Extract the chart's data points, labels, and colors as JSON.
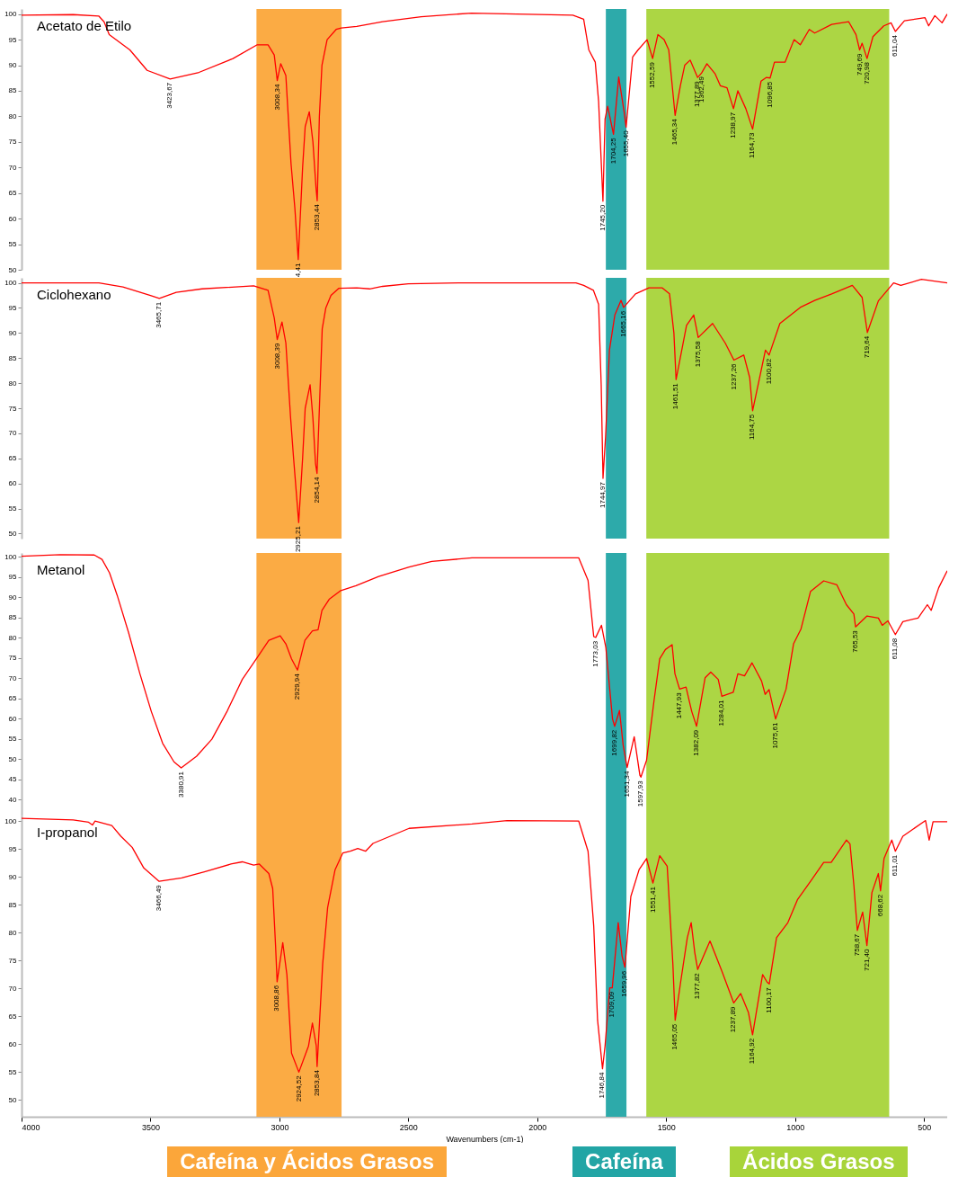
{
  "chart_data": [
    {
      "type": "line",
      "xlim": [
        4000,
        410
      ],
      "ylim": [
        50,
        101
      ],
      "yticks": [
        50,
        55,
        60,
        65,
        70,
        75,
        80,
        85,
        90,
        95,
        100
      ],
      "tick_labels": "y",
      "series": [
        {
          "name": "Acetato de Etilo",
          "color": "#ff0000",
          "x": [
            4000,
            3800,
            3700,
            3680,
            3660,
            3580,
            3513,
            3423.67,
            3312,
            3180,
            3086,
            3044,
            3020,
            3008.34,
            2995,
            2975,
            2955,
            2940,
            2927,
            2910,
            2900,
            2884,
            2870,
            2858,
            2853.44,
            2845,
            2835,
            2815,
            2780,
            2760,
            2700,
            2600,
            2450,
            2255,
            1862,
            1820,
            1800,
            1775,
            1762,
            1745.2,
            1737,
            1727,
            1704.25,
            1684,
            1663,
            1655.4,
            1630,
            1609,
            1574,
            1552.59,
            1532,
            1508,
            1490,
            1465.34,
            1445,
            1428,
            1407,
            1377.89,
            1362.49,
            1342,
            1310,
            1290,
            1264,
            1238.97,
            1222,
            1191,
            1164.73,
            1132,
            1112,
            1096.85,
            1080,
            1039,
            1004,
            980,
            945,
            924,
            858,
            792,
            764,
            749.69,
            740,
            720.98,
            698,
            656,
            628,
            611.04,
            576,
            496,
            482,
            458,
            430,
            410
          ],
          "values": [
            99.8,
            99.9,
            99.6,
            98.5,
            96,
            93,
            89,
            87.3,
            88.6,
            91.3,
            94,
            94,
            92,
            87,
            90.3,
            88,
            70.8,
            62,
            52,
            70,
            78,
            80.9,
            75,
            66,
            63.5,
            80,
            90,
            95,
            97,
            97.3,
            97.6,
            98.5,
            99.5,
            100.2,
            99.8,
            99,
            93,
            90.6,
            82.9,
            63.4,
            79.5,
            82,
            76.5,
            87.7,
            80.9,
            77.9,
            91.6,
            93,
            95,
            91.3,
            96,
            95,
            93,
            80.2,
            86,
            90,
            91,
            87.6,
            88.5,
            90.3,
            88.3,
            86,
            85.6,
            81.5,
            85,
            81.5,
            77.5,
            86.9,
            87.6,
            87.5,
            90.6,
            90.6,
            95,
            94,
            97,
            96.3,
            98,
            98.5,
            96,
            93,
            94.3,
            91.3,
            95.6,
            97.7,
            98.3,
            96.6,
            98.7,
            99.3,
            97.7,
            99.7,
            98.3,
            100
          ]
        }
      ],
      "annotations": [
        {
          "text": "3423,67",
          "x": 3423.67,
          "y": 87.3
        },
        {
          "text": "3008,34",
          "x": 3008.34,
          "y": 87
        },
        {
          "text": "4,41",
          "x": 2927,
          "y": 52
        },
        {
          "text": "2853,44",
          "x": 2853.44,
          "y": 63.5
        },
        {
          "text": "1745,20",
          "x": 1745.2,
          "y": 63.4
        },
        {
          "text": "1704,25",
          "x": 1704.25,
          "y": 76.5
        },
        {
          "text": "1655,40",
          "x": 1655.4,
          "y": 77.9
        },
        {
          "text": "1552,59",
          "x": 1552.59,
          "y": 91.3
        },
        {
          "text": "1465,34",
          "x": 1465.34,
          "y": 80.2
        },
        {
          "text": "1377,89",
          "x": 1377.89,
          "y": 87.6
        },
        {
          "text": "1362,49",
          "x": 1362.49,
          "y": 88.5
        },
        {
          "text": "1238,97",
          "x": 1238.97,
          "y": 81.5
        },
        {
          "text": "1164,73",
          "x": 1164.73,
          "y": 77.5
        },
        {
          "text": "1096,85",
          "x": 1096.85,
          "y": 87.5
        },
        {
          "text": "749,69",
          "x": 749.69,
          "y": 93
        },
        {
          "text": "720,98",
          "x": 720.98,
          "y": 91.3
        },
        {
          "text": "611,04",
          "x": 611.04,
          "y": 96.6
        }
      ],
      "bands": [
        {
          "axis": "x",
          "from": 3089,
          "to": 2759,
          "color": "#fba63a"
        },
        {
          "axis": "x",
          "from": 1734,
          "to": 1654,
          "color": "#22a5a5"
        },
        {
          "axis": "x",
          "from": 1577,
          "to": 635,
          "color": "#a8d43a"
        }
      ]
    },
    {
      "type": "line",
      "xlim": [
        4000,
        410
      ],
      "ylim": [
        49,
        101
      ],
      "yticks": [
        50,
        55,
        60,
        65,
        70,
        75,
        80,
        85,
        90,
        95,
        100
      ],
      "tick_labels": "y",
      "series": [
        {
          "name": "Ciclohexano",
          "color": "#ff0000",
          "x": [
            4000,
            3700,
            3607,
            3500,
            3465.71,
            3400,
            3300,
            3100,
            3044,
            3020,
            3008.39,
            2990,
            2975,
            2957,
            2945,
            2925.21,
            2910,
            2900,
            2881,
            2870,
            2860,
            2854.14,
            2845,
            2834,
            2820,
            2800,
            2770,
            2700,
            2650,
            2600,
            2500,
            2300,
            1850,
            1820,
            1782,
            1762,
            1752,
            1744.97,
            1735,
            1720,
            1699,
            1675,
            1665.16,
            1619,
            1567,
            1515,
            1487,
            1470,
            1461.51,
            1421,
            1393,
            1375.58,
            1320,
            1271,
            1237.26,
            1199,
            1176,
            1164.75,
            1115,
            1100.82,
            1059,
            980,
            924,
            858,
            778,
            740,
            719.64,
            677,
            618,
            590,
            510,
            410
          ],
          "values": [
            100,
            100,
            99.2,
            97.5,
            96.9,
            98.1,
            98.8,
            99.4,
            98.5,
            93,
            88.7,
            92.2,
            88,
            73.4,
            65,
            52.2,
            65,
            75,
            79.7,
            73,
            64,
            62,
            75,
            90.8,
            95,
            97.5,
            98.9,
            99,
            98.8,
            99.3,
            99.8,
            100,
            100,
            99.5,
            98.5,
            95.7,
            79.7,
            61,
            69.3,
            86.6,
            93.6,
            96.5,
            95.1,
            97.8,
            99,
            99,
            97.8,
            90,
            80.7,
            91.5,
            93.6,
            89.1,
            91.9,
            88,
            84.6,
            85.6,
            81.1,
            74.5,
            86.6,
            85.6,
            91.9,
            95.1,
            96.5,
            97.8,
            99.5,
            97.1,
            90.1,
            96.4,
            100,
            99.5,
            100.7,
            100
          ]
        }
      ],
      "annotations": [
        {
          "text": "3465,71",
          "x": 3465.71,
          "y": 96.9
        },
        {
          "text": "3008,39",
          "x": 3008.39,
          "y": 88.7
        },
        {
          "text": "2925,21",
          "x": 2925.21,
          "y": 52.2
        },
        {
          "text": "2854,14",
          "x": 2854.14,
          "y": 62
        },
        {
          "text": "1744,97",
          "x": 1744.97,
          "y": 61
        },
        {
          "text": "1665,16",
          "x": 1665.16,
          "y": 95.1
        },
        {
          "text": "1461,51",
          "x": 1461.51,
          "y": 80.7
        },
        {
          "text": "1375,58",
          "x": 1375.58,
          "y": 89.1
        },
        {
          "text": "1237,26",
          "x": 1237.26,
          "y": 84.6
        },
        {
          "text": "1164,75",
          "x": 1164.75,
          "y": 74.5
        },
        {
          "text": "1100,82",
          "x": 1100.82,
          "y": 85.6
        },
        {
          "text": "719,64",
          "x": 719.64,
          "y": 90.1
        }
      ],
      "bands": [
        {
          "axis": "x",
          "from": 3089,
          "to": 2759,
          "color": "#fba63a"
        },
        {
          "axis": "x",
          "from": 1734,
          "to": 1654,
          "color": "#22a5a5"
        },
        {
          "axis": "x",
          "from": 1577,
          "to": 635,
          "color": "#a8d43a"
        }
      ]
    },
    {
      "type": "line",
      "xlim": [
        4000,
        410
      ],
      "ylim": [
        36,
        101
      ],
      "yticks": [
        40,
        45,
        50,
        55,
        60,
        65,
        70,
        75,
        80,
        85,
        90,
        95,
        100
      ],
      "tick_labels": "y",
      "series": [
        {
          "name": "Metanol",
          "color": "#ff0000",
          "x": [
            4000,
            3850,
            3718,
            3688,
            3659,
            3629,
            3585,
            3541,
            3497,
            3453,
            3409,
            3380.91,
            3321,
            3262,
            3203,
            3144,
            3085,
            3041,
            2997,
            2975,
            2953,
            2929.94,
            2901,
            2872,
            2850,
            2835,
            2806,
            2762,
            2703,
            2615,
            2497,
            2409,
            2253,
            1839,
            1803,
            1781,
            1773.03,
            1751,
            1734,
            1708,
            1699.82,
            1681,
            1667,
            1651.34,
            1624,
            1602,
            1597.93,
            1576,
            1547,
            1525,
            1503,
            1477,
            1466,
            1447.93,
            1423,
            1401,
            1382.09,
            1349,
            1327,
            1298,
            1284.01,
            1240,
            1222,
            1196,
            1167,
            1130,
            1116,
            1101,
            1075.61,
            1035,
            1006,
            977,
            940,
            889,
            838,
            801,
            772,
            765.53,
            721,
            677,
            662,
            640,
            611.08,
            582,
            523,
            487,
            472,
            443,
            410
          ],
          "values": [
            100.2,
            100.6,
            100.5,
            99.4,
            96.1,
            90.5,
            81.3,
            71.1,
            61.8,
            53.9,
            49.3,
            47.8,
            50.7,
            54.9,
            61.8,
            69.7,
            75.2,
            79.4,
            80.5,
            78.5,
            74.8,
            72,
            79.4,
            81.7,
            82,
            86.8,
            89.6,
            91.7,
            92.9,
            95.2,
            97.5,
            98.9,
            99.8,
            99.8,
            94.2,
            80.3,
            80.1,
            83.1,
            77.6,
            59.9,
            58.1,
            62,
            53.5,
            47.9,
            55.5,
            46,
            45.5,
            49.7,
            64.5,
            74.8,
            77.1,
            78.3,
            71.1,
            67.3,
            67.8,
            61.8,
            58.1,
            70.1,
            71.5,
            69.7,
            65.5,
            66.5,
            71.1,
            70.6,
            73.8,
            69.3,
            66,
            67.2,
            59.9,
            67.3,
            78.5,
            82.2,
            91.5,
            94.1,
            93.1,
            88.2,
            85.9,
            82.7,
            85.4,
            84.9,
            83.1,
            84.2,
            80.8,
            84,
            84.9,
            88.2,
            86.8,
            92.4,
            96.6
          ]
        }
      ],
      "annotations": [
        {
          "text": "3380,91",
          "x": 3380.91,
          "y": 47.8
        },
        {
          "text": "2929,94",
          "x": 2929.94,
          "y": 72
        },
        {
          "text": "1773,03",
          "x": 1773.03,
          "y": 80.1
        },
        {
          "text": "1699,82",
          "x": 1699.82,
          "y": 58.1
        },
        {
          "text": "1651,34",
          "x": 1651.34,
          "y": 47.9
        },
        {
          "text": "1597,93",
          "x": 1597.93,
          "y": 45.5
        },
        {
          "text": "1447,93",
          "x": 1447.93,
          "y": 67.3
        },
        {
          "text": "1382,09",
          "x": 1382.09,
          "y": 58.1
        },
        {
          "text": "1284,01",
          "x": 1284.01,
          "y": 65.5
        },
        {
          "text": "1075,61",
          "x": 1075.61,
          "y": 59.9
        },
        {
          "text": "765,53",
          "x": 765.53,
          "y": 82.7
        },
        {
          "text": "611,08",
          "x": 611.08,
          "y": 80.8
        }
      ],
      "bands": [
        {
          "axis": "x",
          "from": 3089,
          "to": 2759,
          "color": "#fba63a"
        },
        {
          "axis": "x",
          "from": 1734,
          "to": 1654,
          "color": "#22a5a5"
        },
        {
          "axis": "x",
          "from": 1577,
          "to": 635,
          "color": "#a8d43a"
        }
      ]
    },
    {
      "type": "line",
      "xlim": [
        4000,
        410
      ],
      "ylim": [
        47,
        101
      ],
      "yticks": [
        50,
        55,
        60,
        65,
        70,
        75,
        80,
        85,
        90,
        95,
        100
      ],
      "xticks": [
        4000,
        3500,
        3000,
        2500,
        2000,
        1500,
        1000,
        500
      ],
      "xlabel": "Wavenumbers (cm-1)",
      "series": [
        {
          "name": "I-propanol",
          "color": "#ff0000",
          "x": [
            4000,
            3800,
            3740,
            3725,
            3715,
            3650,
            3615,
            3571,
            3526,
            3466.49,
            3379,
            3291,
            3188,
            3144,
            3100,
            3078,
            3041,
            3026,
            3015,
            3008.86,
            2987,
            2971,
            2953,
            2924.52,
            2887,
            2872,
            2857,
            2853.84,
            2832,
            2813,
            2784,
            2754,
            2725,
            2696,
            2666,
            2637,
            2497,
            2253,
            2117,
            1839,
            1803,
            1781,
            1766,
            1746.84,
            1737,
            1719,
            1709.09,
            1686,
            1671,
            1659.96,
            1637,
            1605,
            1576,
            1551.41,
            1525,
            1496,
            1474,
            1465.05,
            1444,
            1418,
            1403,
            1389,
            1377.82,
            1330,
            1284,
            1237.89,
            1211,
            1181,
            1164.92,
            1126,
            1108,
            1100.17,
            1072,
            1028,
            991,
            940,
            889,
            860,
            801,
            787,
            772,
            758.67,
            738,
            721.4,
            702,
            677,
            668.62,
            655,
            625,
            611.01,
            582,
            494,
            480,
            465,
            410
          ],
          "values": [
            100.5,
            100.2,
            99.8,
            99.3,
            100,
            99.2,
            97.3,
            95.3,
            91.6,
            89.2,
            89.8,
            90.9,
            92.3,
            92.7,
            92.1,
            92.3,
            90.6,
            87.9,
            77.8,
            71.2,
            78.2,
            72.5,
            58.4,
            55,
            59.7,
            63.8,
            59.7,
            56,
            74.5,
            84.5,
            91.3,
            94.3,
            94.6,
            95.1,
            94.6,
            96,
            98.7,
            99.5,
            100.1,
            100,
            94.6,
            81.2,
            64.3,
            55.6,
            59.7,
            70.1,
            70.1,
            81.8,
            75.8,
            73.8,
            86.5,
            91.3,
            93.3,
            88.9,
            93.8,
            91.9,
            74.4,
            64.3,
            71.1,
            79.1,
            81.8,
            76.4,
            73.4,
            78.5,
            73.1,
            67.4,
            69.1,
            65.7,
            61.7,
            72.5,
            71.1,
            70.8,
            79.1,
            81.8,
            85.9,
            89.2,
            92.6,
            92.6,
            96.6,
            95.9,
            88.5,
            80.4,
            83.7,
            77.7,
            87.2,
            90.6,
            87.5,
            93.3,
            96.6,
            94.6,
            97.3,
            100.1,
            96.6,
            99.9,
            99.9
          ]
        }
      ],
      "annotations": [
        {
          "text": "3466,49",
          "x": 3466.49,
          "y": 89.2
        },
        {
          "text": "3008,86",
          "x": 3008.86,
          "y": 71.2
        },
        {
          "text": "2924,52",
          "x": 2924.52,
          "y": 55
        },
        {
          "text": "2853,84",
          "x": 2853.84,
          "y": 56
        },
        {
          "text": "1746,84",
          "x": 1746.84,
          "y": 55.6
        },
        {
          "text": "1709,09",
          "x": 1709.09,
          "y": 70.1
        },
        {
          "text": "1659,96",
          "x": 1659.96,
          "y": 73.8
        },
        {
          "text": "1551,41",
          "x": 1551.41,
          "y": 88.9
        },
        {
          "text": "1465,05",
          "x": 1465.05,
          "y": 64.3
        },
        {
          "text": "1377,82",
          "x": 1377.82,
          "y": 73.4
        },
        {
          "text": "1237,89",
          "x": 1237.89,
          "y": 67.4
        },
        {
          "text": "1164,92",
          "x": 1164.92,
          "y": 61.7
        },
        {
          "text": "1100,17",
          "x": 1100.17,
          "y": 70.8
        },
        {
          "text": "758,67",
          "x": 758.67,
          "y": 80.4
        },
        {
          "text": "721,40",
          "x": 721.4,
          "y": 77.7
        },
        {
          "text": "668,62",
          "x": 668.62,
          "y": 87.5
        },
        {
          "text": "611,01",
          "x": 611.01,
          "y": 94.6
        }
      ],
      "bands": [
        {
          "axis": "x",
          "from": 3089,
          "to": 2759,
          "color": "#fba63a",
          "label": "Cafeína y Ácidos Grasos"
        },
        {
          "axis": "x",
          "from": 1734,
          "to": 1654,
          "color": "#22a5a5",
          "label": "Cafeína"
        },
        {
          "axis": "x",
          "from": 1577,
          "to": 635,
          "color": "#a8d43a",
          "label": "Ácidos Grasos"
        }
      ]
    }
  ]
}
